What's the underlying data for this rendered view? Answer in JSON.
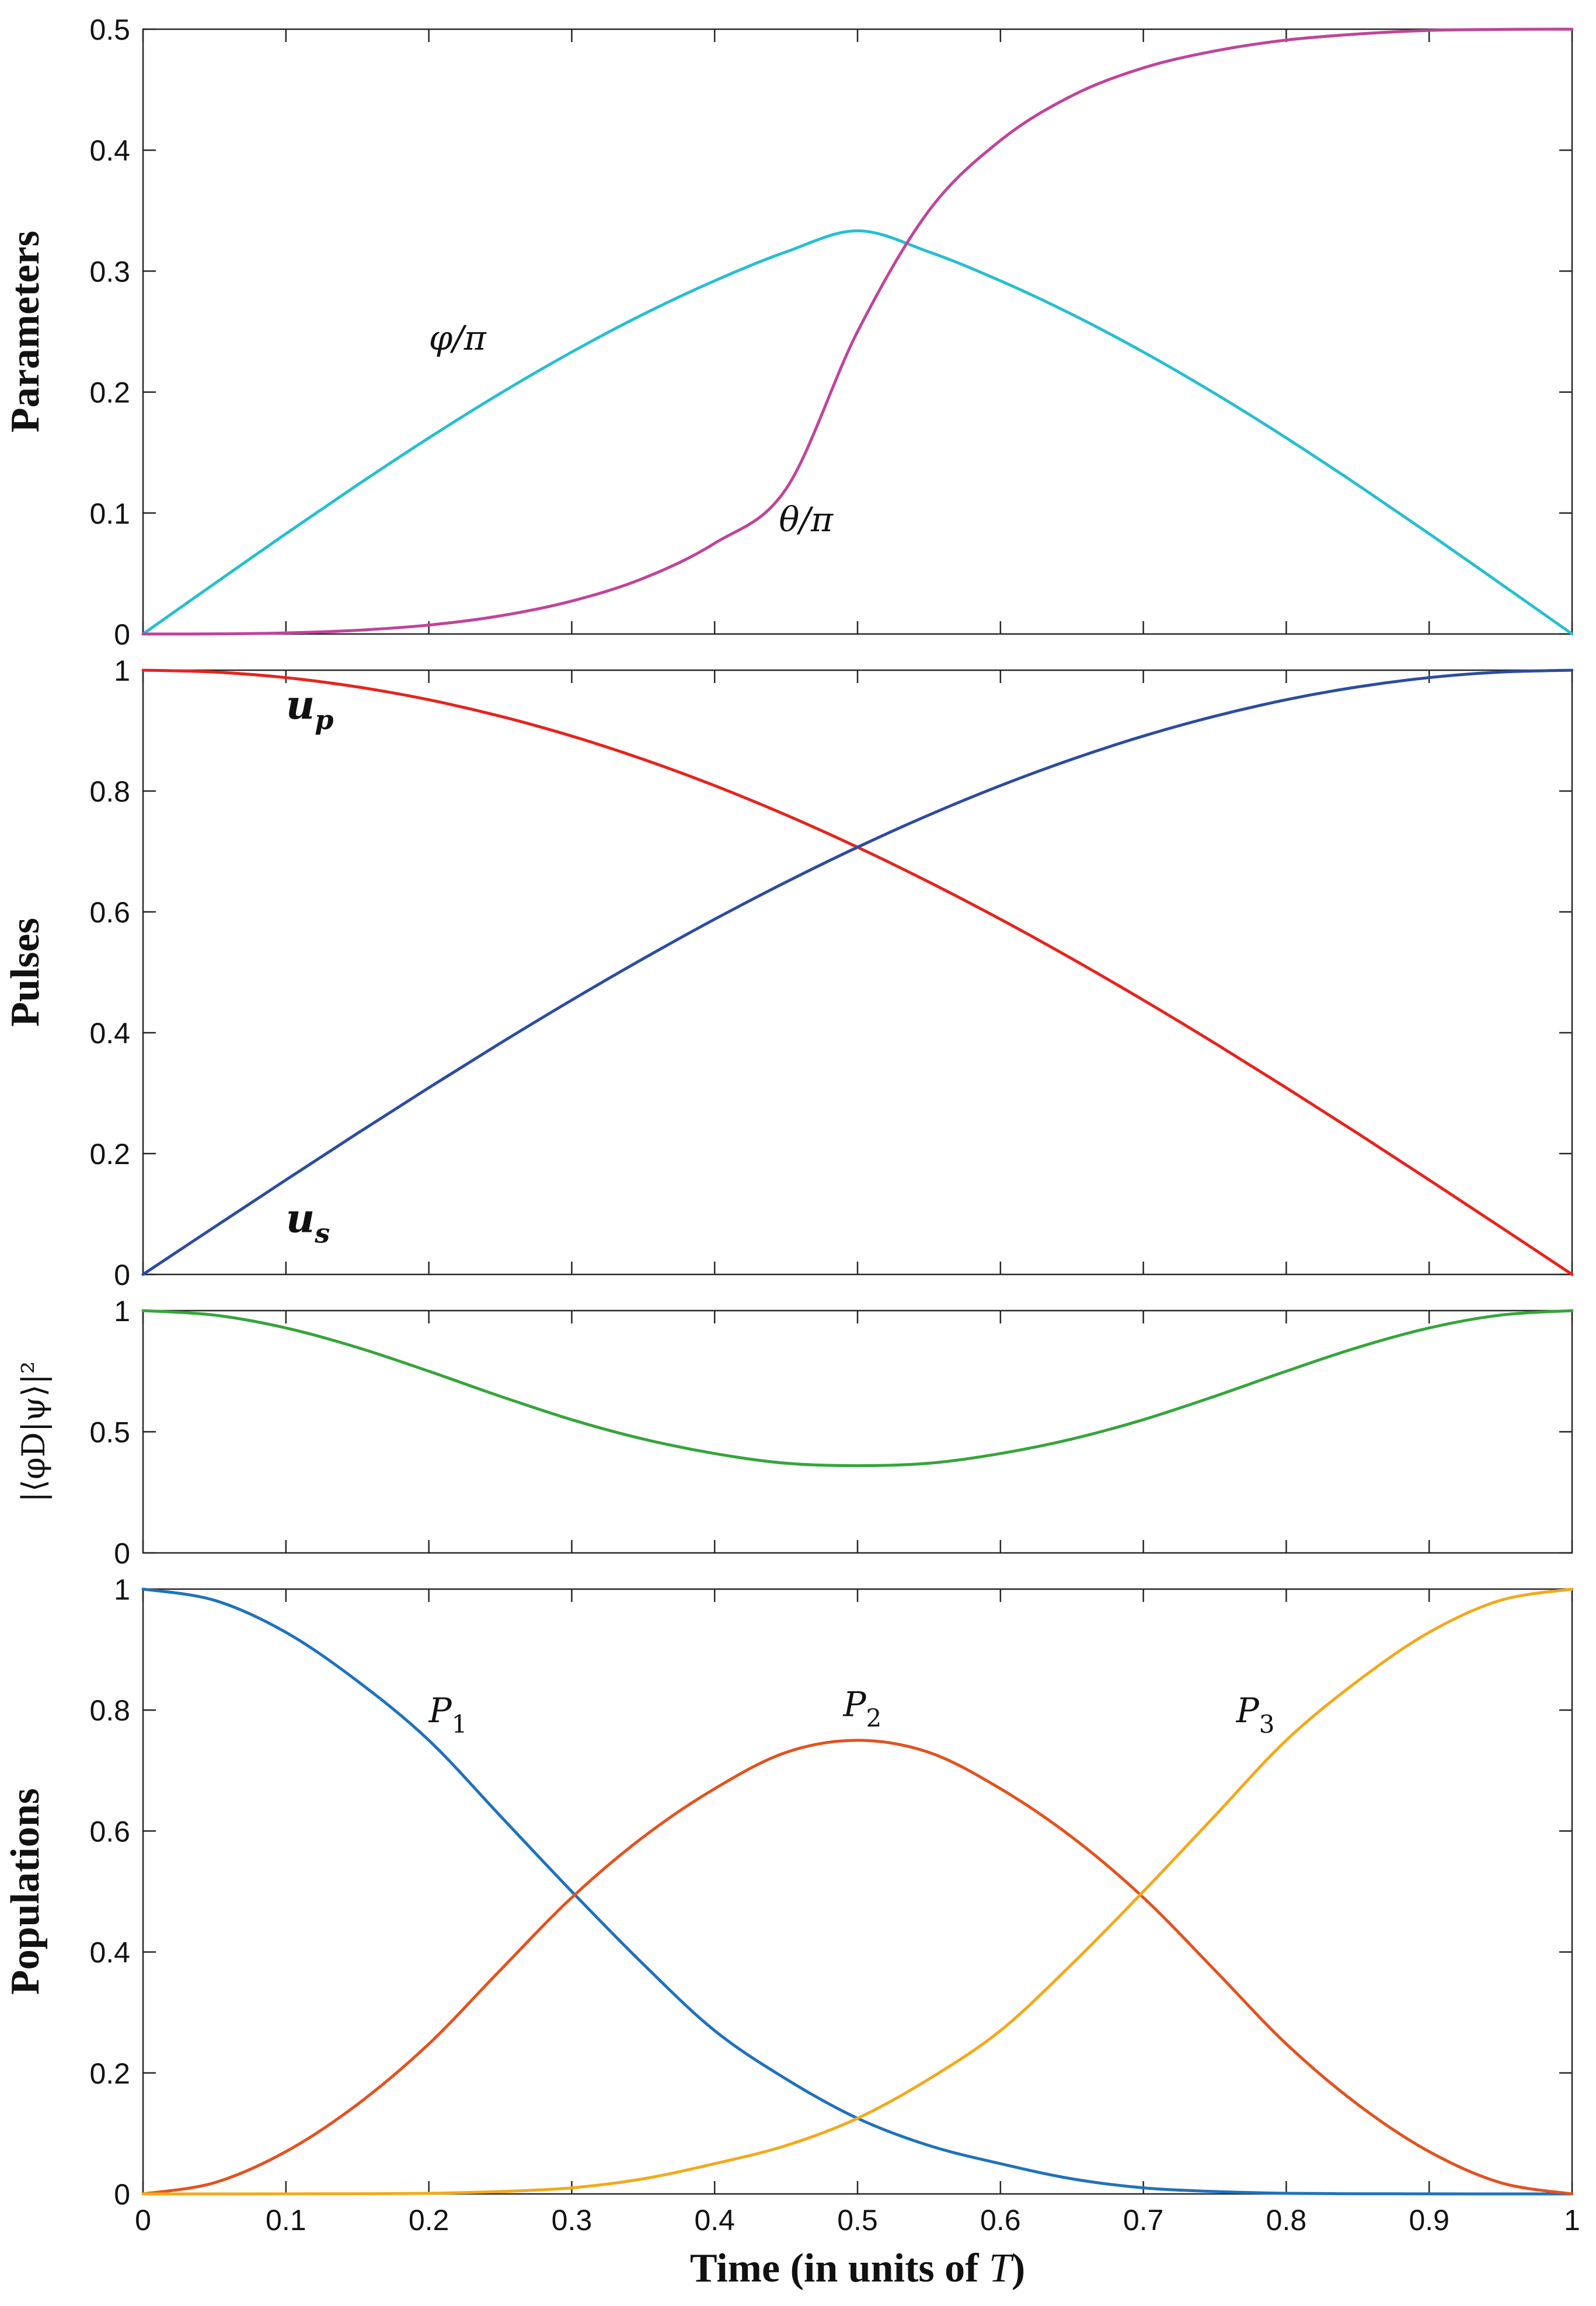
{
  "chart_data": [
    {
      "type": "line",
      "name": "parameters",
      "ylabel": "Parameters",
      "xlim": [
        0,
        1
      ],
      "ylim": [
        0,
        0.5
      ],
      "yticks": [
        "0",
        "0.1",
        "0.2",
        "0.3",
        "0.4",
        "0.5"
      ],
      "x": [
        0,
        0.05,
        0.1,
        0.15,
        0.2,
        0.25,
        0.3,
        0.35,
        0.4,
        0.45,
        0.5,
        0.55,
        0.6,
        0.65,
        0.7,
        0.75,
        0.8,
        0.85,
        0.9,
        0.95,
        1
      ],
      "series": [
        {
          "name": "φ/π",
          "label": "φ/π",
          "color": "#26bfd0",
          "label_at": [
            0.2,
            0.235
          ],
          "values": [
            0,
            0.0416,
            0.0829,
            0.1232,
            0.1621,
            0.1989,
            0.2331,
            0.2643,
            0.292,
            0.3159,
            0.3333,
            0.3159,
            0.292,
            0.2643,
            0.2331,
            0.1989,
            0.1621,
            0.1232,
            0.0829,
            0.0416,
            0
          ]
        },
        {
          "name": "θ/π",
          "label": "θ/π",
          "color": "#c0449a",
          "label_at": [
            0.445,
            0.085
          ],
          "values": [
            0,
            0.0001,
            0.0009,
            0.0031,
            0.0074,
            0.015,
            0.0272,
            0.046,
            0.075,
            0.12,
            0.25,
            0.35,
            0.408,
            0.445,
            0.468,
            0.482,
            0.491,
            0.496,
            0.499,
            0.4998,
            0.5
          ]
        }
      ]
    },
    {
      "type": "line",
      "name": "pulses",
      "ylabel": "Pulses",
      "xlim": [
        0,
        1
      ],
      "ylim": [
        0,
        1
      ],
      "yticks": [
        "0",
        "0.2",
        "0.4",
        "0.6",
        "0.8",
        "1"
      ],
      "x": [
        0,
        0.05,
        0.1,
        0.15,
        0.2,
        0.25,
        0.3,
        0.35,
        0.4,
        0.45,
        0.5,
        0.55,
        0.6,
        0.65,
        0.7,
        0.75,
        0.8,
        0.85,
        0.9,
        0.95,
        1
      ],
      "series": [
        {
          "name": "u_p",
          "label": "u",
          "subscript": "p",
          "color": "#e8231c",
          "label_at": [
            0.1,
            0.92
          ],
          "values": [
            1,
            0.9969,
            0.9877,
            0.9724,
            0.9511,
            0.9239,
            0.891,
            0.8526,
            0.809,
            0.7604,
            0.7071,
            0.6494,
            0.5878,
            0.5225,
            0.454,
            0.3827,
            0.309,
            0.2334,
            0.1564,
            0.0785,
            0
          ]
        },
        {
          "name": "u_s",
          "label": "u",
          "subscript": "s",
          "color": "#2c4c9f",
          "label_at": [
            0.1,
            0.07
          ],
          "values": [
            0,
            0.0785,
            0.1564,
            0.2334,
            0.309,
            0.3827,
            0.454,
            0.5225,
            0.5878,
            0.6494,
            0.7071,
            0.7604,
            0.809,
            0.8526,
            0.891,
            0.9239,
            0.9511,
            0.9724,
            0.9877,
            0.9969,
            1
          ]
        }
      ]
    },
    {
      "type": "line",
      "name": "fidelity",
      "ylabel": "|⟨φD|ψ⟩|²",
      "xlim": [
        0,
        1
      ],
      "ylim": [
        0,
        1
      ],
      "yticks": [
        "0",
        "0.5",
        "1"
      ],
      "x": [
        0,
        0.05,
        0.1,
        0.15,
        0.2,
        0.25,
        0.3,
        0.35,
        0.4,
        0.45,
        0.5,
        0.55,
        0.6,
        0.65,
        0.7,
        0.75,
        0.8,
        0.85,
        0.9,
        0.95,
        1
      ],
      "series": [
        {
          "name": "|⟨φD|ψ⟩|²",
          "color": "#36a53b",
          "values": [
            1,
            0.9815,
            0.9285,
            0.848,
            0.75,
            0.6465,
            0.55,
            0.47,
            0.41,
            0.37,
            0.36,
            0.37,
            0.41,
            0.47,
            0.55,
            0.6465,
            0.75,
            0.848,
            0.9285,
            0.9815,
            1
          ]
        }
      ]
    },
    {
      "type": "line",
      "name": "populations",
      "ylabel": "Populations",
      "xlabel": "Time (in units of ",
      "xlabel_var": "T",
      "xlabel_end": ")",
      "xlim": [
        0,
        1
      ],
      "ylim": [
        0,
        1
      ],
      "xticks": [
        "0",
        "0.1",
        "0.2",
        "0.3",
        "0.4",
        "0.5",
        "0.6",
        "0.7",
        "0.8",
        "0.9",
        "1"
      ],
      "yticks": [
        "0",
        "0.2",
        "0.4",
        "0.6",
        "0.8",
        "1"
      ],
      "x": [
        0,
        0.05,
        0.1,
        0.15,
        0.2,
        0.25,
        0.3,
        0.35,
        0.4,
        0.45,
        0.5,
        0.55,
        0.6,
        0.65,
        0.7,
        0.75,
        0.8,
        0.85,
        0.9,
        0.95,
        1
      ],
      "series": [
        {
          "name": "P1",
          "label": "P",
          "subscript": "1",
          "color": "#1f72bd",
          "label_at": [
            0.2,
            0.78
          ],
          "values": [
            1,
            0.9815,
            0.9285,
            0.848,
            0.75,
            0.625,
            0.5,
            0.38,
            0.27,
            0.19,
            0.125,
            0.08,
            0.05,
            0.025,
            0.01,
            0.004,
            0.001,
            0.0003,
            0.0001,
            0.0,
            0
          ]
        },
        {
          "name": "P2",
          "label": "P",
          "subscript": "2",
          "color": "#e4521e",
          "label_at": [
            0.49,
            0.79
          ],
          "values": [
            0,
            0.0185,
            0.07,
            0.148,
            0.248,
            0.37,
            0.49,
            0.59,
            0.67,
            0.73,
            0.75,
            0.73,
            0.67,
            0.59,
            0.49,
            0.37,
            0.248,
            0.148,
            0.07,
            0.0185,
            0
          ]
        },
        {
          "name": "P3",
          "label": "P",
          "subscript": "3",
          "color": "#f3a91b",
          "label_at": [
            0.765,
            0.78
          ],
          "values": [
            0,
            0.0,
            0.0001,
            0.0003,
            0.001,
            0.004,
            0.01,
            0.025,
            0.05,
            0.08,
            0.125,
            0.19,
            0.27,
            0.38,
            0.5,
            0.625,
            0.75,
            0.848,
            0.9285,
            0.9815,
            1
          ]
        }
      ]
    }
  ]
}
